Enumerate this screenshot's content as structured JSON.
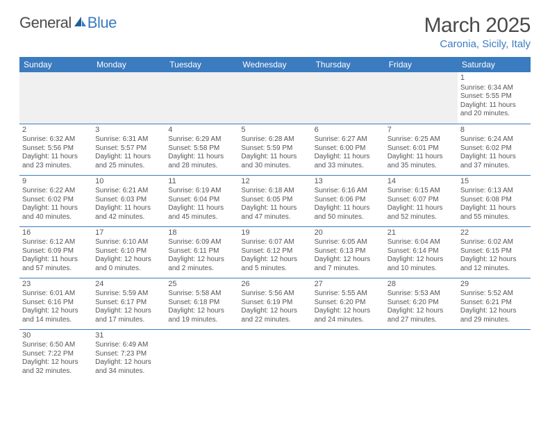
{
  "logo": {
    "textA": "General",
    "textB": "Blue"
  },
  "title": "March 2025",
  "location": "Caronia, Sicily, Italy",
  "weekdays": [
    "Sunday",
    "Monday",
    "Tuesday",
    "Wednesday",
    "Thursday",
    "Friday",
    "Saturday"
  ],
  "colors": {
    "accent": "#3b7bbf",
    "headerText": "#ffffff",
    "text": "#555",
    "background": "#ffffff",
    "blankBg": "#f0f0f0"
  },
  "startOffset": 6,
  "days": [
    {
      "n": 1,
      "sunrise": "6:34 AM",
      "sunset": "5:55 PM",
      "dayH": 11,
      "dayM": 20
    },
    {
      "n": 2,
      "sunrise": "6:32 AM",
      "sunset": "5:56 PM",
      "dayH": 11,
      "dayM": 23
    },
    {
      "n": 3,
      "sunrise": "6:31 AM",
      "sunset": "5:57 PM",
      "dayH": 11,
      "dayM": 25
    },
    {
      "n": 4,
      "sunrise": "6:29 AM",
      "sunset": "5:58 PM",
      "dayH": 11,
      "dayM": 28
    },
    {
      "n": 5,
      "sunrise": "6:28 AM",
      "sunset": "5:59 PM",
      "dayH": 11,
      "dayM": 30
    },
    {
      "n": 6,
      "sunrise": "6:27 AM",
      "sunset": "6:00 PM",
      "dayH": 11,
      "dayM": 33
    },
    {
      "n": 7,
      "sunrise": "6:25 AM",
      "sunset": "6:01 PM",
      "dayH": 11,
      "dayM": 35
    },
    {
      "n": 8,
      "sunrise": "6:24 AM",
      "sunset": "6:02 PM",
      "dayH": 11,
      "dayM": 37
    },
    {
      "n": 9,
      "sunrise": "6:22 AM",
      "sunset": "6:02 PM",
      "dayH": 11,
      "dayM": 40
    },
    {
      "n": 10,
      "sunrise": "6:21 AM",
      "sunset": "6:03 PM",
      "dayH": 11,
      "dayM": 42
    },
    {
      "n": 11,
      "sunrise": "6:19 AM",
      "sunset": "6:04 PM",
      "dayH": 11,
      "dayM": 45
    },
    {
      "n": 12,
      "sunrise": "6:18 AM",
      "sunset": "6:05 PM",
      "dayH": 11,
      "dayM": 47
    },
    {
      "n": 13,
      "sunrise": "6:16 AM",
      "sunset": "6:06 PM",
      "dayH": 11,
      "dayM": 50
    },
    {
      "n": 14,
      "sunrise": "6:15 AM",
      "sunset": "6:07 PM",
      "dayH": 11,
      "dayM": 52
    },
    {
      "n": 15,
      "sunrise": "6:13 AM",
      "sunset": "6:08 PM",
      "dayH": 11,
      "dayM": 55
    },
    {
      "n": 16,
      "sunrise": "6:12 AM",
      "sunset": "6:09 PM",
      "dayH": 11,
      "dayM": 57
    },
    {
      "n": 17,
      "sunrise": "6:10 AM",
      "sunset": "6:10 PM",
      "dayH": 12,
      "dayM": 0
    },
    {
      "n": 18,
      "sunrise": "6:09 AM",
      "sunset": "6:11 PM",
      "dayH": 12,
      "dayM": 2
    },
    {
      "n": 19,
      "sunrise": "6:07 AM",
      "sunset": "6:12 PM",
      "dayH": 12,
      "dayM": 5
    },
    {
      "n": 20,
      "sunrise": "6:05 AM",
      "sunset": "6:13 PM",
      "dayH": 12,
      "dayM": 7
    },
    {
      "n": 21,
      "sunrise": "6:04 AM",
      "sunset": "6:14 PM",
      "dayH": 12,
      "dayM": 10
    },
    {
      "n": 22,
      "sunrise": "6:02 AM",
      "sunset": "6:15 PM",
      "dayH": 12,
      "dayM": 12
    },
    {
      "n": 23,
      "sunrise": "6:01 AM",
      "sunset": "6:16 PM",
      "dayH": 12,
      "dayM": 14
    },
    {
      "n": 24,
      "sunrise": "5:59 AM",
      "sunset": "6:17 PM",
      "dayH": 12,
      "dayM": 17
    },
    {
      "n": 25,
      "sunrise": "5:58 AM",
      "sunset": "6:18 PM",
      "dayH": 12,
      "dayM": 19
    },
    {
      "n": 26,
      "sunrise": "5:56 AM",
      "sunset": "6:19 PM",
      "dayH": 12,
      "dayM": 22
    },
    {
      "n": 27,
      "sunrise": "5:55 AM",
      "sunset": "6:20 PM",
      "dayH": 12,
      "dayM": 24
    },
    {
      "n": 28,
      "sunrise": "5:53 AM",
      "sunset": "6:20 PM",
      "dayH": 12,
      "dayM": 27
    },
    {
      "n": 29,
      "sunrise": "5:52 AM",
      "sunset": "6:21 PM",
      "dayH": 12,
      "dayM": 29
    },
    {
      "n": 30,
      "sunrise": "6:50 AM",
      "sunset": "7:22 PM",
      "dayH": 12,
      "dayM": 32
    },
    {
      "n": 31,
      "sunrise": "6:49 AM",
      "sunset": "7:23 PM",
      "dayH": 12,
      "dayM": 34
    }
  ]
}
